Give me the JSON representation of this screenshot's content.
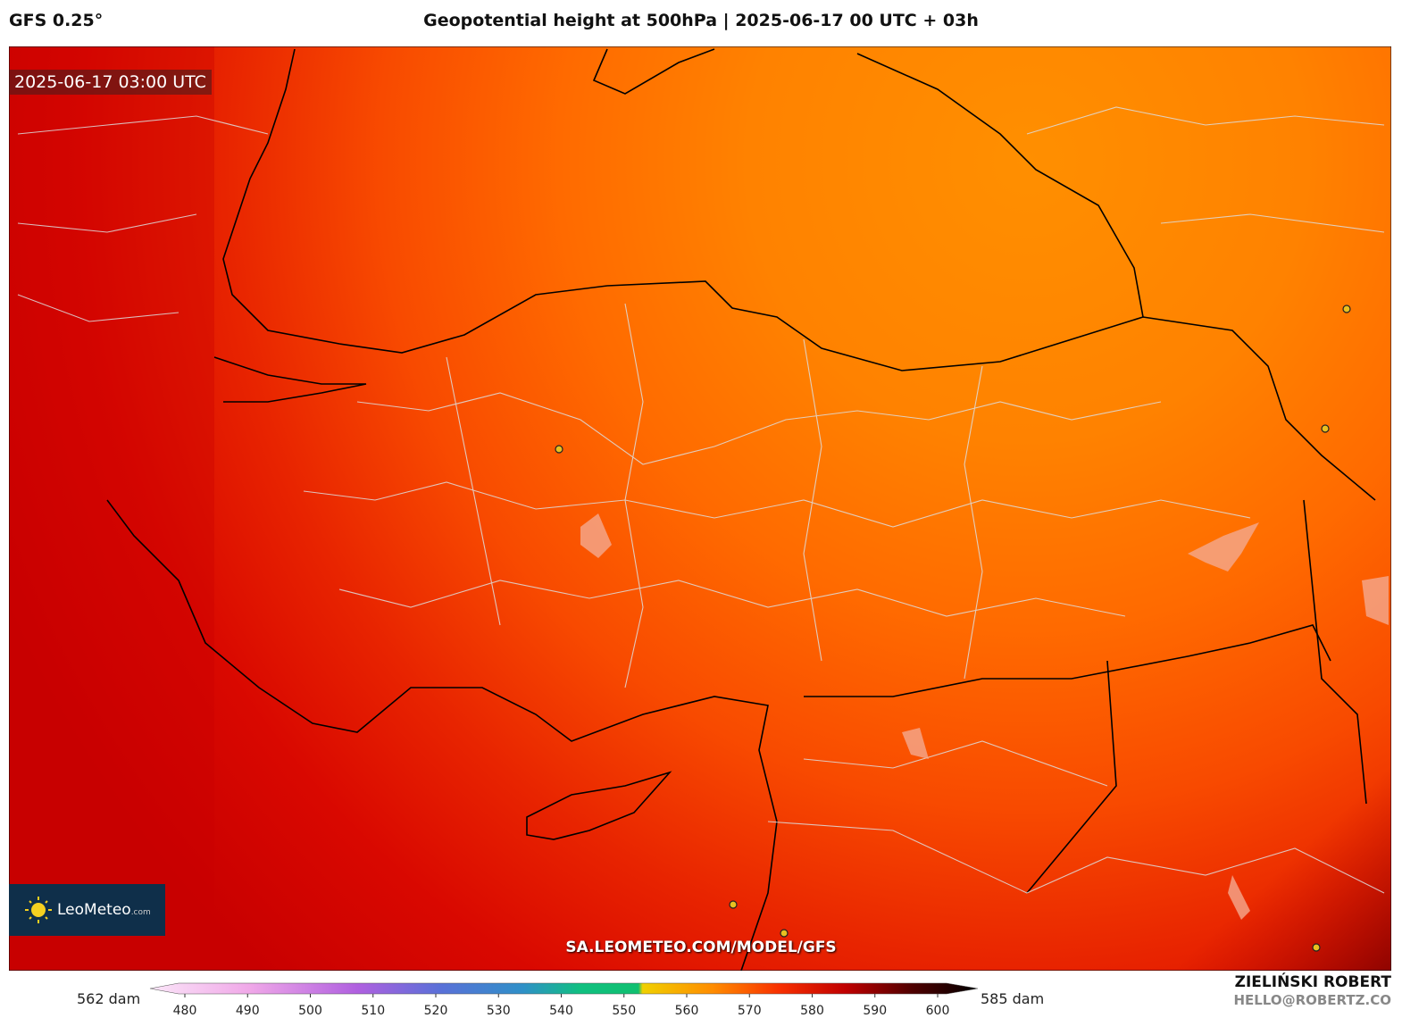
{
  "header": {
    "model": "GFS 0.25°",
    "title": "Geopotential height at 500hPa | 2025-06-17 00 UTC + 03h"
  },
  "map": {
    "timestamp": "2025-06-17 03:00 UTC",
    "logo": "LeoMeteo",
    "logo_suffix": ".com",
    "url": "SA.LEOMETEO.COM/MODEL/GFS"
  },
  "colorbar": {
    "min_label": "562 dam",
    "max_label": "585 dam",
    "ticks": [
      480,
      490,
      500,
      510,
      520,
      530,
      540,
      550,
      560,
      570,
      580,
      590,
      600
    ]
  },
  "footer": {
    "author": "ZIELIŃSKI ROBERT",
    "email": "HELLO@ROBERTZ.CO"
  }
}
